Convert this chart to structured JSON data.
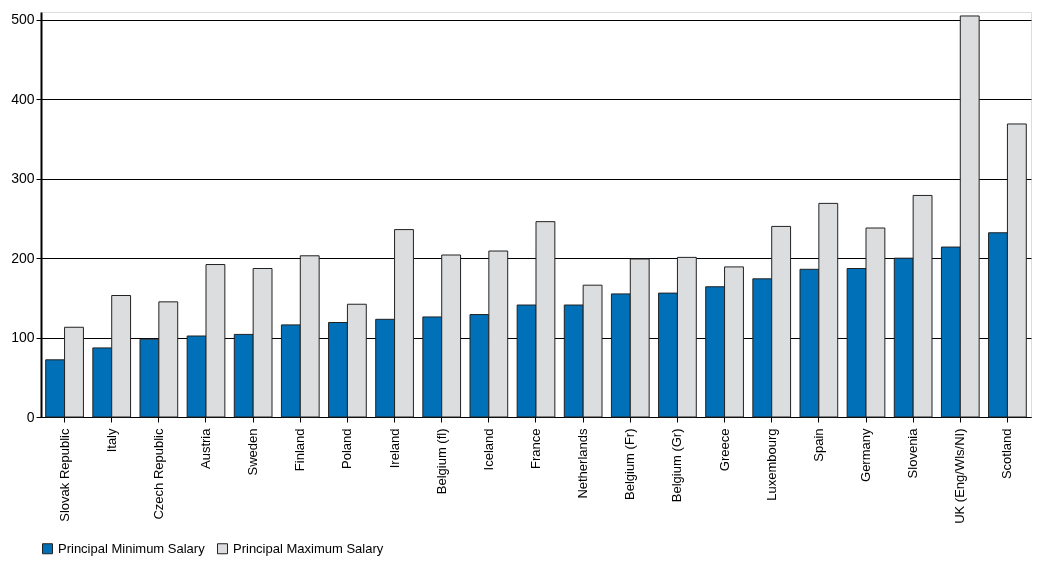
{
  "chart_data": {
    "type": "bar",
    "categories": [
      "Slovak Republic",
      "Italy",
      "Czech Republic",
      "Austria",
      "Sweden",
      "Finland",
      "Poland",
      "Ireland",
      "Belgium (fl)",
      "Iceland",
      "France",
      "Netherlands",
      "Belgium (Fr)",
      "Belgium (Gr)",
      "Greece",
      "Luxembourg",
      "Spain",
      "Germany",
      "Slovenia",
      "UK (Eng/Wls/NI)",
      "Scotland"
    ],
    "series": [
      {
        "name": "Principal Minimum Salary",
        "color": "#0070b8",
        "values": [
          72,
          87,
          98,
          102,
          104,
          116,
          119,
          123,
          126,
          129,
          141,
          141,
          155,
          156,
          164,
          174,
          186,
          187,
          200,
          214,
          232
        ]
      },
      {
        "name": "Principal Maximum Salary",
        "color": "#dcdddf",
        "values": [
          113,
          153,
          145,
          192,
          187,
          203,
          142,
          236,
          204,
          209,
          246,
          166,
          199,
          201,
          189,
          240,
          269,
          238,
          279,
          505,
          369
        ]
      }
    ],
    "ylim": [
      0,
      510
    ],
    "yticks": [
      0,
      100,
      200,
      300,
      400,
      500
    ],
    "grid": "y",
    "legend": "bottom"
  }
}
